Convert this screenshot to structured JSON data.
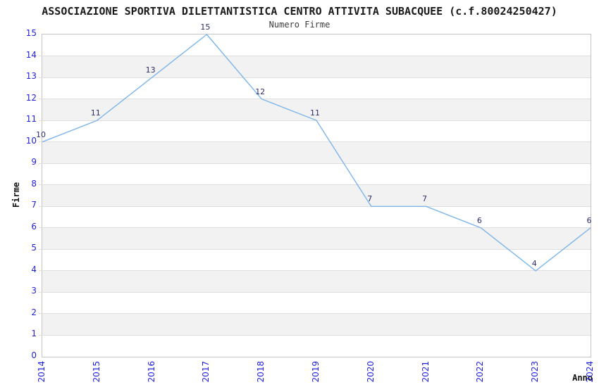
{
  "chart_data": {
    "type": "line",
    "title": "ASSOCIAZIONE SPORTIVA DILETTANTISTICA CENTRO ATTIVITA SUBACQUEE (c.f.80024250427)",
    "subtitle": "Numero Firme",
    "xlabel": "Anno",
    "ylabel": "Firme",
    "categories": [
      "2014",
      "2015",
      "2016",
      "2017",
      "2018",
      "2019",
      "2020",
      "2021",
      "2022",
      "2023",
      "2024"
    ],
    "values": [
      10,
      11,
      13,
      15,
      12,
      11,
      7,
      7,
      6,
      4,
      6
    ],
    "ylim": [
      0,
      15
    ],
    "ytick_step": 1,
    "grid": "horizontal-alternating-bands",
    "legend": "none",
    "markers": "none",
    "colors": {
      "line": "#7db5ea",
      "tick_label": "#1f1fe0",
      "data_label": "#2c2c6e",
      "band": "#f2f2f2",
      "gridline": "#dedede",
      "plot_border": "#c4c4c4",
      "title": "#1a1a1a",
      "subtitle": "#3c3c3c",
      "axis_label": "#111111",
      "background": "#ffffff"
    }
  }
}
